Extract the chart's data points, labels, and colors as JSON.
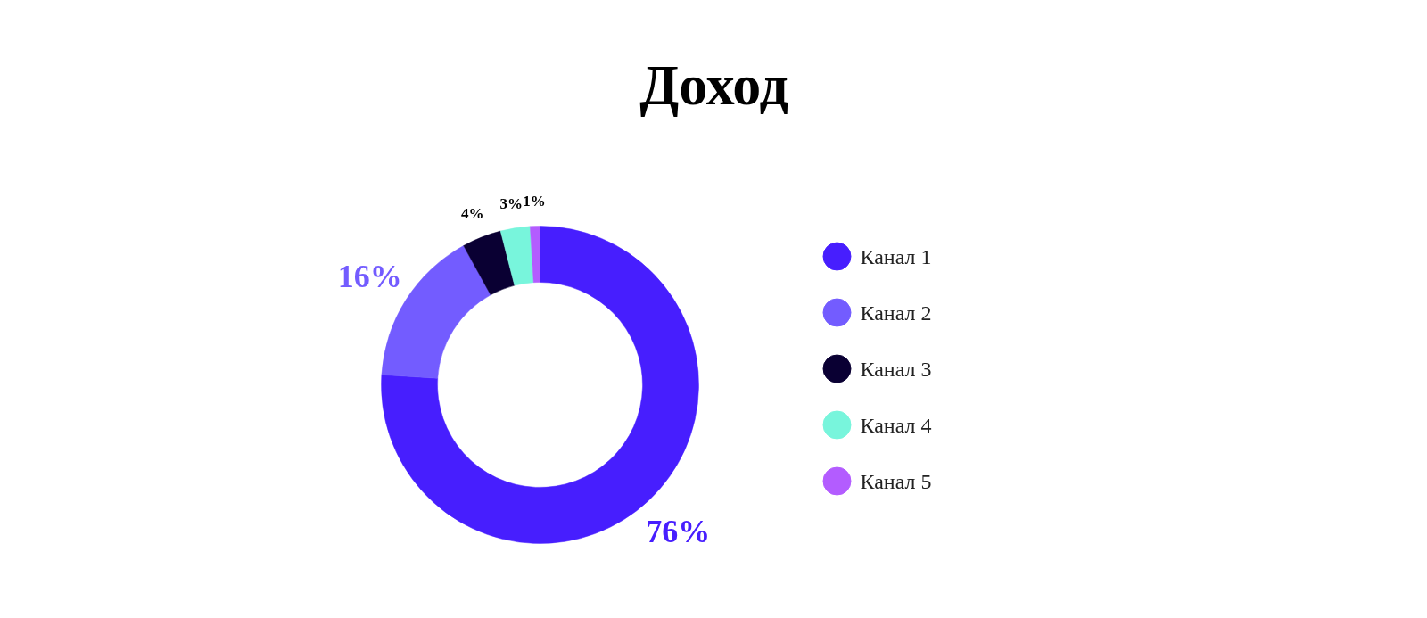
{
  "chart_data": {
    "type": "donut",
    "title": "Доход",
    "categories": [
      "Канал 1",
      "Канал 2",
      "Канал 3",
      "Канал 4",
      "Канал 5"
    ],
    "values": [
      76,
      16,
      4,
      3,
      1
    ],
    "colors": [
      "#471efe",
      "#735cff",
      "#0a0033",
      "#78f5dc",
      "#b35cff"
    ],
    "value_labels": [
      "76%",
      "16%",
      "4%",
      "3%",
      "1%"
    ],
    "legend": "right"
  }
}
